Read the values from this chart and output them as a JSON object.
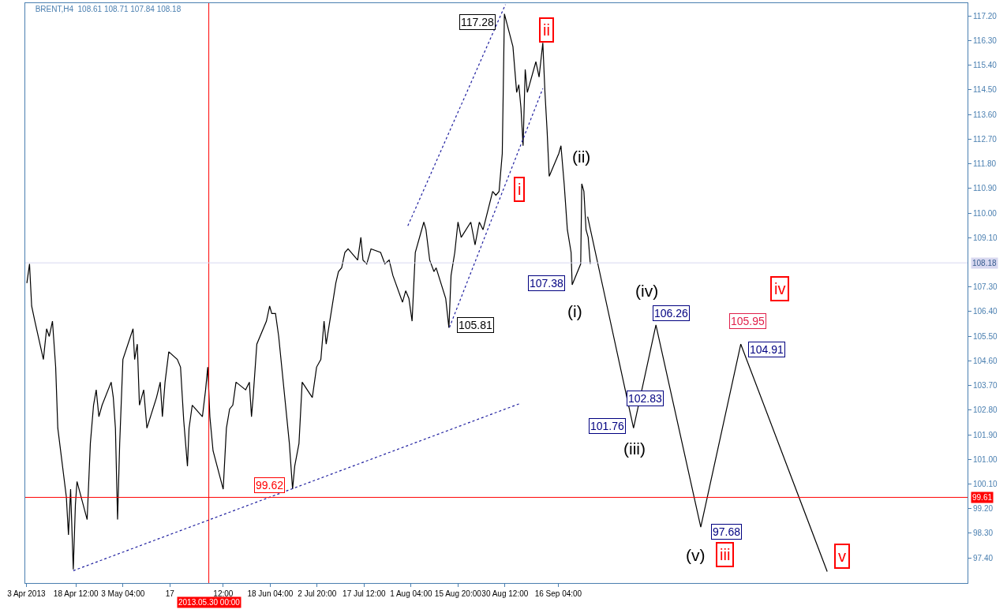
{
  "chart_data": {
    "type": "line",
    "title": "BRENT,H4  108.61 108.71 107.84 108.18",
    "xlim": [
      "2013-04-02T16:00",
      "2014-01-22T00:00"
    ],
    "ylim": [
      96.48,
      117.67
    ],
    "xticks": [
      {
        "value": "2013-04-03",
        "label": "3 Apr 2013"
      },
      {
        "value": "2013-04-18T12:00",
        "label": "18 Apr 12:00"
      },
      {
        "value": "2013-05-03T04:00",
        "label": "3 May 04:00"
      },
      {
        "value": "2013-05-17T20:00",
        "label": "17"
      },
      {
        "value": "2013-06-03T12:00",
        "label": "12:00"
      },
      {
        "value": "2013-06-18T04:00",
        "label": "18 Jun 04:00"
      },
      {
        "value": "2013-07-02T20:00",
        "label": "2 Jul 20:00"
      },
      {
        "value": "2013-07-17T12:00",
        "label": "17 Jul 12:00"
      },
      {
        "value": "2013-08-01T04:00",
        "label": "1 Aug 04:00"
      },
      {
        "value": "2013-08-15T20:00",
        "label": "15 Aug 20:00"
      },
      {
        "value": "2013-08-30T12:00",
        "label": "30 Aug 12:00"
      },
      {
        "value": "2013-09-16T04:00",
        "label": "16 Sep 04:00"
      }
    ],
    "yticks": [
      {
        "value": 117.2,
        "label": "117.20"
      },
      {
        "value": 116.3,
        "label": "116.30"
      },
      {
        "value": 115.4,
        "label": "115.40"
      },
      {
        "value": 114.5,
        "label": "114.50"
      },
      {
        "value": 113.6,
        "label": "113.60"
      },
      {
        "value": 112.7,
        "label": "112.70"
      },
      {
        "value": 111.8,
        "label": "111.80"
      },
      {
        "value": 110.9,
        "label": "110.90"
      },
      {
        "value": 110.0,
        "label": "110.00"
      },
      {
        "value": 109.1,
        "label": "109.10"
      },
      {
        "value": 107.3,
        "label": "107.30"
      },
      {
        "value": 106.4,
        "label": "106.40"
      },
      {
        "value": 105.5,
        "label": "105.50"
      },
      {
        "value": 104.6,
        "label": "104.60"
      },
      {
        "value": 103.7,
        "label": "103.70"
      },
      {
        "value": 102.8,
        "label": "102.80"
      },
      {
        "value": 101.9,
        "label": "101.90"
      },
      {
        "value": 101.0,
        "label": "101.00"
      },
      {
        "value": 100.1,
        "label": "100.10"
      },
      {
        "value": 99.2,
        "label": "99.20"
      },
      {
        "value": 98.3,
        "label": "98.30"
      },
      {
        "value": 97.4,
        "label": "97.40"
      }
    ],
    "grid": false,
    "series": [
      {
        "color": "#000000",
        "line_style": "solid",
        "x": [
          "2013-04-03T04:00",
          "2013-04-04T00:00",
          "2013-04-04T16:00",
          "2013-04-05T16:00",
          "2013-04-08T08:00",
          "2013-04-09T08:00",
          "2013-04-10T04:00",
          "2013-04-11T04:00",
          "2013-04-12T04:00",
          "2013-04-12T20:00",
          "2013-04-15T12:00",
          "2013-04-16T04:00",
          "2013-04-16T20:00",
          "2013-04-17T16:00",
          "2013-04-18T08:00",
          "2013-04-18T20:00",
          "2013-04-22T00:00",
          "2013-04-23T00:00",
          "2013-04-24T00:00",
          "2013-04-24T20:00",
          "2013-04-25T16:00",
          "2013-04-26T16:00",
          "2013-04-29T12:00",
          "2013-04-30T04:00",
          "2013-04-30T20:00",
          "2013-05-01T12:00",
          "2013-05-02T04:00",
          "2013-05-03T04:00",
          "2013-05-06T08:00",
          "2013-05-06T20:00",
          "2013-05-07T16:00",
          "2013-05-08T08:00",
          "2013-05-09T16:00",
          "2013-05-10T16:00",
          "2013-05-13T16:00",
          "2013-05-14T20:00",
          "2013-05-15T12:00",
          "2013-05-16T08:00",
          "2013-05-17T12:00",
          "2013-05-20T04:00",
          "2013-05-21T04:00",
          "2013-05-22T04:00",
          "2013-05-23T08:00",
          "2013-05-23T20:00",
          "2013-05-24T20:00",
          "2013-05-28T00:00",
          "2013-05-29T00:00",
          "2013-05-29T16:00",
          "2013-05-30T08:00",
          "2013-05-31T08:00",
          "2013-06-03T12:00",
          "2013-06-04T12:00",
          "2013-06-05T12:00",
          "2013-06-06T12:00",
          "2013-06-07T12:00",
          "2013-06-10T12:00",
          "2013-06-11T16:00",
          "2013-06-12T08:00",
          "2013-06-12T20:00",
          "2013-06-14T00:00",
          "2013-06-17T00:00",
          "2013-06-18T00:00",
          "2013-06-18T16:00",
          "2013-06-19T20:00",
          "2013-06-20T20:00",
          "2013-06-24T04:00",
          "2013-06-25T04:00",
          "2013-06-25T20:00",
          "2013-06-27T04:00",
          "2013-06-28T04:00",
          "2013-07-01T08:00",
          "2013-07-02T16:00",
          "2013-07-04T00:00",
          "2013-07-05T00:00",
          "2013-07-05T16:00",
          "2013-07-08T16:00",
          "2013-07-09T12:00",
          "2013-07-10T12:00",
          "2013-07-11T12:00",
          "2013-07-12T12:00",
          "2013-07-15T12:00",
          "2013-07-16T12:00",
          "2013-07-17T04:00",
          "2013-07-18T08:00",
          "2013-07-19T16:00",
          "2013-07-22T16:00",
          "2013-07-24T00:00",
          "2013-07-25T08:00",
          "2013-07-26T12:00",
          "2013-07-29T12:00",
          "2013-07-30T12:00",
          "2013-07-31T12:00",
          "2013-08-01T12:00",
          "2013-08-02T12:00",
          "2013-08-05T04:00",
          "2013-08-05T20:00",
          "2013-08-07T00:00",
          "2013-08-08T08:00",
          "2013-08-09T00:00",
          "2013-08-12T00:00",
          "2013-08-13T00:00",
          "2013-08-13T16:00",
          "2013-08-14T20:00",
          "2013-08-15T20:00",
          "2013-08-16T20:00",
          "2013-08-19T20:00",
          "2013-08-21T04:00",
          "2013-08-22T12:00",
          "2013-08-23T16:00",
          "2013-08-26T16:00",
          "2013-08-27T16:00",
          "2013-08-28T16:00",
          "2013-08-29T16:00",
          "2013-08-30T00:00",
          "2013-08-30T08:00",
          "2013-09-02T00:00",
          "2013-09-03T04:00",
          "2013-09-03T20:00",
          "2013-09-04T12:00",
          "2013-09-05T04:00",
          "2013-09-05T20:00",
          "2013-09-06T12:00",
          "2013-09-09T04:00",
          "2013-09-10T04:00",
          "2013-09-11T08:00",
          "2013-09-12T00:00",
          "2013-09-12T16:00",
          "2013-09-13T08:00",
          "2013-09-16T08:00",
          "2013-09-17T00:00",
          "2013-09-18T00:00",
          "2013-09-19T00:00",
          "2013-09-20T04:00",
          "2013-09-20T12:00",
          "2013-09-23T04:00",
          "2013-09-23T12:00",
          "2013-09-24T04:00",
          "2013-09-24T20:00",
          "2013-09-25T12:00",
          "2013-09-26T04:00"
        ],
        "values": [
          107.44,
          108.14,
          106.6,
          106.05,
          104.65,
          105.77,
          105.49,
          106.05,
          104.37,
          102.14,
          99.63,
          98.24,
          99.91,
          96.98,
          99.35,
          100.19,
          98.8,
          101.58,
          102.98,
          103.54,
          102.56,
          102.98,
          103.82,
          103.26,
          102.14,
          98.8,
          101.58,
          104.65,
          105.77,
          104.65,
          105.21,
          102.98,
          103.54,
          102.14,
          103.26,
          103.82,
          102.56,
          103.82,
          104.93,
          104.65,
          104.37,
          102.42,
          100.75,
          102.14,
          102.98,
          102.56,
          103.54,
          104.37,
          102.56,
          101.31,
          99.91,
          102.14,
          102.84,
          102.98,
          103.82,
          103.54,
          103.82,
          102.56,
          103.26,
          105.21,
          106.05,
          106.6,
          106.33,
          106.33,
          105.49,
          101.58,
          99.91,
          100.75,
          101.58,
          103.82,
          103.26,
          104.37,
          104.65,
          106.05,
          105.21,
          107.44,
          107.86,
          108.0,
          108.56,
          108.69,
          108.28,
          109.11,
          108.28,
          108.14,
          108.69,
          108.56,
          108.14,
          108.28,
          107.72,
          106.74,
          107.16,
          106.88,
          106.05,
          108.56,
          109.67,
          109.39,
          108.28,
          107.86,
          108.0,
          106.88,
          105.81,
          107.72,
          108.56,
          109.67,
          109.11,
          109.67,
          108.84,
          109.67,
          109.39,
          110.79,
          110.65,
          110.79,
          112.18,
          114.69,
          117.28,
          116.08,
          114.41,
          114.69,
          113.85,
          112.46,
          115.25,
          114.41,
          115.53,
          114.97,
          116.22,
          114.41,
          113.02,
          111.34,
          112.18,
          112.46,
          111.07,
          109.39,
          108.56,
          107.38,
          108.14,
          111.07,
          110.79,
          109.39,
          109.11,
          108.14
        ]
      },
      {
        "color": "#000000",
        "line_style": "solid",
        "x": [
          "2013-09-25T08:00",
          "2013-10-09T16:00",
          "2013-10-16T16:00",
          "2013-10-30T16:00",
          "2013-11-12T04:00",
          "2013-12-09T04:00"
        ],
        "values": [
          109.87,
          102.14,
          105.91,
          98.52,
          105.21,
          96.9
        ]
      },
      {
        "color": "#2020a0",
        "line_style": "dotted",
        "x": [
          "2013-07-31T04:00",
          "2013-08-30T16:00"
        ],
        "values": [
          109.53,
          117.62
        ]
      },
      {
        "color": "#2020a0",
        "line_style": "dotted",
        "x": [
          "2013-08-13T04:00",
          "2013-09-11T08:00"
        ],
        "values": [
          105.82,
          114.55
        ]
      },
      {
        "color": "#2020a0",
        "line_style": "dotted",
        "x": [
          "2013-04-17T16:00",
          "2013-09-04T00:00"
        ],
        "values": [
          96.93,
          103.03
        ]
      }
    ],
    "ref_lines": [
      {
        "axis": "x",
        "value": "2013-05-30T00:00",
        "label": "2013.05.30 00:00",
        "color": "#ff0000"
      },
      {
        "axis": "y",
        "value": 99.61,
        "label": "99.61",
        "color": "#ff0000"
      },
      {
        "axis": "y",
        "value": 108.18,
        "label": "108.18",
        "color": "#d8d8f0"
      }
    ],
    "annotations": [
      "117.28",
      "105.81",
      "107.38",
      "101.76",
      "102.83",
      "106.26",
      "105.95",
      "104.91",
      "97.68",
      "99.62",
      "(i)",
      "(ii)",
      "(iii)",
      "(iv)",
      "(v)",
      "i",
      "ii",
      "iii",
      "iv",
      "v"
    ]
  }
}
